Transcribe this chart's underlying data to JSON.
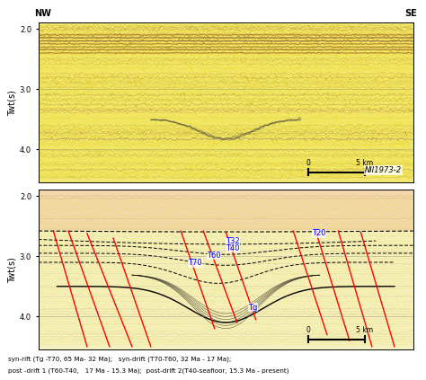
{
  "title_top": "NII1973-2",
  "nw_label": "NW",
  "se_label": "SE",
  "ylabel": "Twt(s)",
  "yticks": [
    2.0,
    3.0,
    4.0
  ],
  "ytick_labels": [
    "2.0",
    "3.0",
    "4.0"
  ],
  "caption": "syn-rift (Tg -T70, 65 Ma- 32 Ma);   syn-drift (T70-T60, 32 Ma - 17 Ma);\npost -drift 1 (T60-T40,   17 Ma - 15.3 Ma);  post-drift 2(T40-seafloor, 15.3 Ma - present)",
  "seismic_bg": "#f0e870",
  "scalebar_label_0": "0",
  "scalebar_label_5": "5 km",
  "fault_lines": [
    [
      [
        0.04,
        0.13
      ],
      [
        2.58,
        4.5
      ]
    ],
    [
      [
        0.08,
        0.19
      ],
      [
        2.58,
        4.5
      ]
    ],
    [
      [
        0.13,
        0.25
      ],
      [
        2.62,
        4.5
      ]
    ],
    [
      [
        0.2,
        0.3
      ],
      [
        2.7,
        4.5
      ]
    ],
    [
      [
        0.38,
        0.47
      ],
      [
        2.58,
        4.2
      ]
    ],
    [
      [
        0.44,
        0.53
      ],
      [
        2.58,
        4.1
      ]
    ],
    [
      [
        0.5,
        0.58
      ],
      [
        2.6,
        4.05
      ]
    ],
    [
      [
        0.68,
        0.77
      ],
      [
        2.58,
        4.3
      ]
    ],
    [
      [
        0.74,
        0.83
      ],
      [
        2.58,
        4.4
      ]
    ],
    [
      [
        0.8,
        0.89
      ],
      [
        2.58,
        4.5
      ]
    ],
    [
      [
        0.86,
        0.95
      ],
      [
        2.6,
        4.5
      ]
    ]
  ],
  "horizon_labels": [
    [
      "T20",
      0.73,
      2.62
    ],
    [
      "T32",
      0.5,
      2.75
    ],
    [
      "T40",
      0.5,
      2.87
    ],
    [
      "T60",
      0.45,
      2.99
    ],
    [
      "T70",
      0.4,
      3.11
    ],
    [
      "Tg",
      0.56,
      3.85
    ]
  ]
}
